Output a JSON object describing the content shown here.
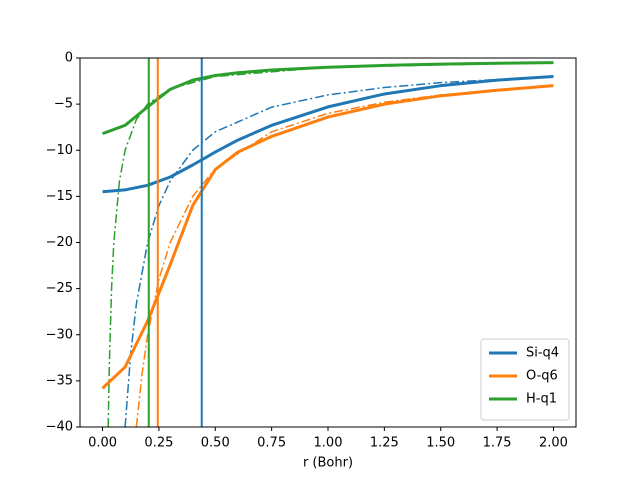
{
  "chart_data": {
    "type": "line",
    "xlabel": "r (Bohr)",
    "xlim": [
      -0.1,
      2.1
    ],
    "ylim": [
      -40,
      0
    ],
    "xticks": [
      {
        "value": 0,
        "label": "0.00"
      },
      {
        "value": 0.25,
        "label": "0.25"
      },
      {
        "value": 0.5,
        "label": "0.50"
      },
      {
        "value": 0.75,
        "label": "0.75"
      },
      {
        "value": 1,
        "label": "1.00"
      },
      {
        "value": 1.25,
        "label": "1.25"
      },
      {
        "value": 1.5,
        "label": "1.50"
      },
      {
        "value": 1.75,
        "label": "1.75"
      },
      {
        "value": 2,
        "label": "2.00"
      }
    ],
    "yticks": [
      0,
      {
        "value": -5,
        "label": "−5"
      },
      {
        "value": -10,
        "label": "−10"
      },
      {
        "value": -15,
        "label": "−15"
      },
      {
        "value": -20,
        "label": "−20"
      },
      {
        "value": -25,
        "label": "−25"
      },
      {
        "value": -30,
        "label": "−30"
      },
      {
        "value": -35,
        "label": "−35"
      },
      {
        "value": -40,
        "label": "−40"
      }
    ],
    "legend": "lower right",
    "series": [
      {
        "style": "dashdot",
        "color": "#1f77b4",
        "x": [
          0.1,
          0.125,
          0.15,
          0.2,
          0.25,
          0.3,
          0.4,
          0.5,
          0.75,
          1.0,
          1.25,
          1.5,
          2.0
        ],
        "values": [
          -40,
          -32,
          -26.67,
          -20,
          -16,
          -13.33,
          -10,
          -8,
          -5.33,
          -4,
          -3.2,
          -2.67,
          -2
        ]
      },
      {
        "style": "dashdot",
        "color": "#ff7f0e",
        "x": [
          0.15,
          0.175,
          0.2,
          0.25,
          0.3,
          0.4,
          0.5,
          0.75,
          1.0,
          1.25,
          1.5,
          2.0
        ],
        "values": [
          -40,
          -34.29,
          -30,
          -24,
          -20,
          -15,
          -12,
          -8,
          -6,
          -4.8,
          -4,
          -3
        ]
      },
      {
        "style": "dashdot",
        "color": "#2ca02c",
        "x": [
          0.025,
          0.03,
          0.04,
          0.05,
          0.075,
          0.1,
          0.15,
          0.2,
          0.3,
          0.5,
          1.0,
          2.0
        ],
        "values": [
          -40,
          -33.33,
          -25,
          -20,
          -13.33,
          -10,
          -6.67,
          -5,
          -3.33,
          -2,
          -1,
          -0.5
        ]
      },
      {
        "name": "Si-q4",
        "style": "solid",
        "color": "#1f77b4",
        "x": [
          0,
          0.1,
          0.2,
          0.3,
          0.4,
          0.5,
          0.6,
          0.75,
          1.0,
          1.25,
          1.5,
          1.75,
          2.0
        ],
        "values": [
          -14.5,
          -14.3,
          -13.8,
          -12.9,
          -11.6,
          -10.2,
          -8.9,
          -7.3,
          -5.3,
          -3.9,
          -3.0,
          -2.4,
          -2.0
        ]
      },
      {
        "name": "O-q6",
        "style": "solid",
        "color": "#ff7f0e",
        "x": [
          0,
          0.1,
          0.2,
          0.25,
          0.3,
          0.4,
          0.5,
          0.6,
          0.75,
          1.0,
          1.25,
          1.5,
          1.75,
          2.0
        ],
        "values": [
          -35.8,
          -33.5,
          -28.5,
          -25.5,
          -22.4,
          -16,
          -12.1,
          -10.2,
          -8.5,
          -6.4,
          -5.0,
          -4.1,
          -3.5,
          -3.0
        ]
      },
      {
        "name": "H-q1",
        "style": "solid",
        "color": "#2ca02c",
        "x": [
          0,
          0.1,
          0.2,
          0.3,
          0.4,
          0.5,
          0.6,
          0.75,
          1.0,
          1.25,
          1.5,
          1.75,
          2.0
        ],
        "values": [
          -8.2,
          -7.3,
          -5.3,
          -3.4,
          -2.4,
          -1.9,
          -1.6,
          -1.3,
          -1.0,
          -0.8,
          -0.67,
          -0.57,
          -0.5
        ]
      }
    ],
    "vlines": [
      {
        "x": 0.44,
        "color": "#1f77b4"
      },
      {
        "x": 0.245,
        "color": "#ff7f0e"
      },
      {
        "x": 0.205,
        "color": "#2ca02c"
      }
    ]
  }
}
